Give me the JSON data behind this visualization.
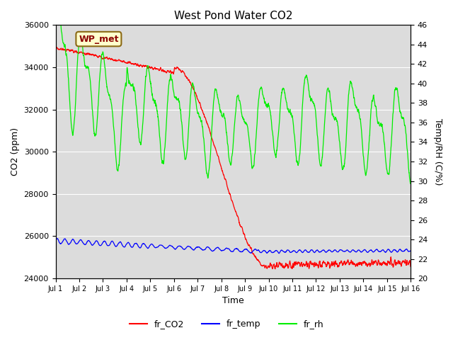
{
  "title": "West Pond Water CO2",
  "xlabel": "Time",
  "ylabel_left": "CO2 (ppm)",
  "ylabel_right": "Temp/RH (C/%)",
  "ylim_left": [
    24000,
    36000
  ],
  "ylim_right": [
    20,
    46
  ],
  "x_ticks": [
    "Jul 1",
    "Jul 2",
    "Jul 3",
    "Jul 4",
    "Jul 5",
    "Jul 6",
    "Jul 7",
    "Jul 8",
    "Jul 9",
    "Jul 10",
    "Jul 11",
    "Jul 12",
    "Jul 13",
    "Jul 14",
    "Jul 15",
    "Jul 16"
  ],
  "annotation_text": "WP_met",
  "annotation_color": "#8B0000",
  "annotation_bg": "#FFFFCC",
  "bg_color": "#DCDCDC",
  "line_co2_color": "red",
  "line_temp_color": "blue",
  "line_rh_color": "#00EE00"
}
